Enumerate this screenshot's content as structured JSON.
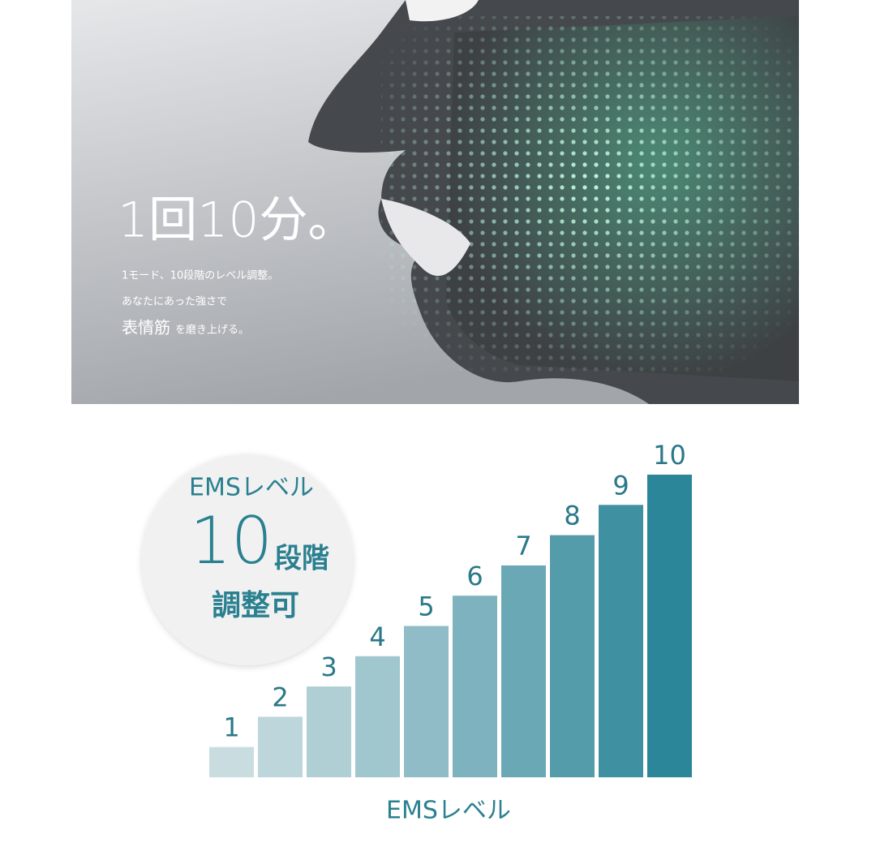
{
  "photo": {
    "headline": "1回10分。",
    "lines": [
      "1モード、10段階のレベル調整。",
      "あなたにあった強さで"
    ],
    "emphasis": "表情筋",
    "emphasis_rest": "を磨き上げる。"
  },
  "badge": {
    "top": "EMSレベル",
    "number": "10",
    "unit": "段階",
    "bottom": "調整可"
  },
  "chart_data": {
    "type": "bar",
    "values": [
      1,
      2,
      3,
      4,
      5,
      6,
      7,
      8,
      9,
      10
    ],
    "colors": [
      "#c9dde1",
      "#bcd6db",
      "#afcfd5",
      "#a0c6ce",
      "#8fbcc6",
      "#7db2be",
      "#6aa8b5",
      "#559cab",
      "#3f90a1",
      "#2a8698"
    ],
    "xlabel": "EMSレベル"
  }
}
